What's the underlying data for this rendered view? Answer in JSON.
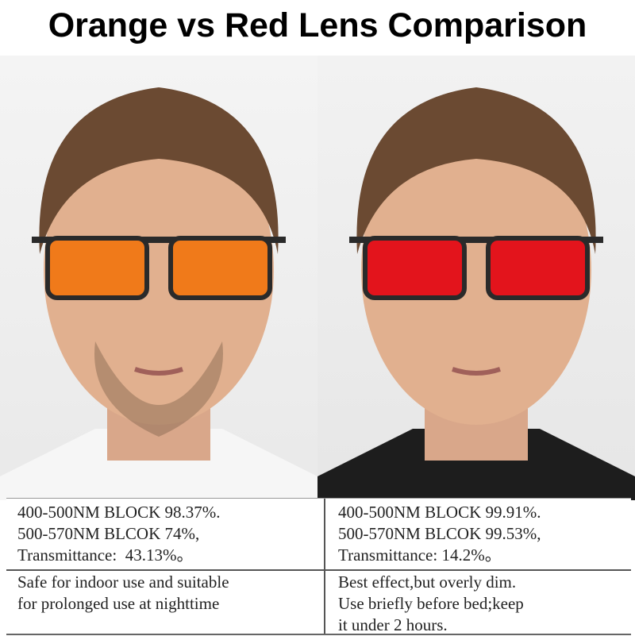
{
  "title": "Orange vs Red Lens Comparison",
  "colors": {
    "orange_lens": "#f07a1a",
    "red_lens": "#e3141c",
    "frame": "#2a2a2a"
  },
  "left": {
    "lens": "orange",
    "specs": [
      "400-500NM BLOCK 98.37%.",
      "500-570NM BLCOK 74%,",
      "Transmittance:  43.13%。"
    ],
    "note": [
      "Safe for indoor use and suitable",
      "for prolonged use at nighttime"
    ]
  },
  "right": {
    "lens": "red",
    "specs": [
      "400-500NM BLOCK 99.91%.",
      "500-570NM BLCOK 99.53%,",
      "Transmittance: 14.2%。"
    ],
    "note": [
      "Best effect,but overly dim.",
      "Use briefly before bed;keep",
      "it under 2 hours."
    ]
  }
}
